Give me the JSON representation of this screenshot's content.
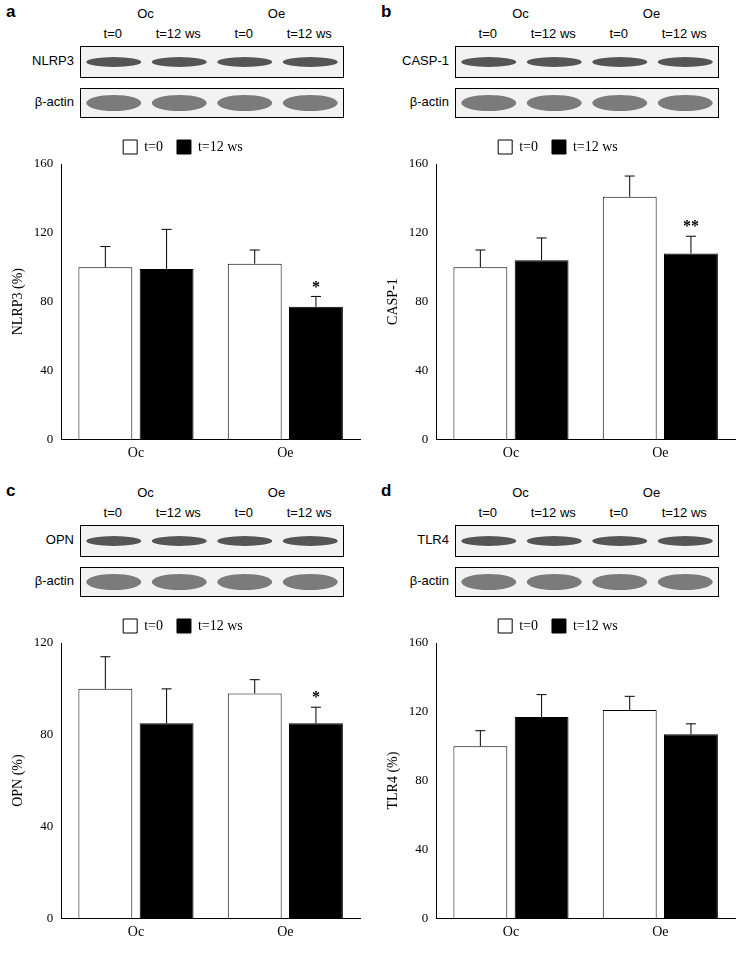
{
  "chart_data": [
    {
      "type": "bar",
      "title": "a",
      "blot": {
        "groups": [
          "Oc",
          "Oe"
        ],
        "lanes": [
          "t=0",
          "t=12 ws",
          "t=0",
          "t=12 ws"
        ],
        "rows": [
          "NLRP3",
          "β-actin"
        ]
      },
      "categories": [
        "Oc",
        "Oe"
      ],
      "series": [
        {
          "name": "t=0",
          "color": "#ffffff",
          "values": [
            100,
            102
          ],
          "errors": [
            12,
            8
          ]
        },
        {
          "name": "t=12 ws",
          "color": "#000000",
          "values": [
            99,
            77
          ],
          "errors": [
            23,
            6
          ]
        }
      ],
      "y_label": "NLRP3 (%)",
      "ylim": [
        0,
        160
      ],
      "yticks": [
        0,
        40,
        80,
        120,
        160
      ],
      "grid": false,
      "legend": "top",
      "annotations": [
        {
          "text": "*",
          "category": "Oe",
          "series": "t=12 ws"
        }
      ]
    },
    {
      "type": "bar",
      "title": "b",
      "blot": {
        "groups": [
          "Oc",
          "Oe"
        ],
        "lanes": [
          "t=0",
          "t=12 ws",
          "t=0",
          "t=12 ws"
        ],
        "rows": [
          "CASP-1",
          "β-actin"
        ]
      },
      "categories": [
        "Oc",
        "Oe"
      ],
      "series": [
        {
          "name": "t=0",
          "color": "#ffffff",
          "values": [
            100,
            141
          ],
          "errors": [
            10,
            12
          ]
        },
        {
          "name": "t=12 ws",
          "color": "#000000",
          "values": [
            104,
            108
          ],
          "errors": [
            13,
            10
          ]
        }
      ],
      "y_label": "CASP-1",
      "ylim": [
        0,
        160
      ],
      "yticks": [
        0,
        40,
        80,
        120,
        160
      ],
      "grid": false,
      "legend": "top",
      "annotations": [
        {
          "text": "**",
          "category": "Oe",
          "series": "t=12 ws"
        }
      ]
    },
    {
      "type": "bar",
      "title": "c",
      "blot": {
        "groups": [
          "Oc",
          "Oe"
        ],
        "lanes": [
          "t=0",
          "t=12 ws",
          "t=0",
          "t=12 ws"
        ],
        "rows": [
          "OPN",
          "β-actin"
        ]
      },
      "categories": [
        "Oc",
        "Oe"
      ],
      "series": [
        {
          "name": "t=0",
          "color": "#ffffff",
          "values": [
            100,
            98
          ],
          "errors": [
            14,
            6
          ]
        },
        {
          "name": "t=12 ws",
          "color": "#000000",
          "values": [
            85,
            85
          ],
          "errors": [
            15,
            7
          ]
        }
      ],
      "y_label": "OPN (%)",
      "ylim": [
        0,
        120
      ],
      "yticks": [
        0,
        40,
        80,
        120
      ],
      "grid": false,
      "legend": "top",
      "annotations": [
        {
          "text": "*",
          "category": "Oe",
          "series": "t=12 ws"
        }
      ]
    },
    {
      "type": "bar",
      "title": "d",
      "blot": {
        "groups": [
          "Oc",
          "Oe"
        ],
        "lanes": [
          "t=0",
          "t=12 ws",
          "t=0",
          "t=12 ws"
        ],
        "rows": [
          "TLR4",
          "β-actin"
        ]
      },
      "categories": [
        "Oc",
        "Oe"
      ],
      "series": [
        {
          "name": "t=0",
          "color": "#ffffff",
          "values": [
            100,
            121
          ],
          "errors": [
            9,
            8
          ]
        },
        {
          "name": "t=12 ws",
          "color": "#000000",
          "values": [
            117,
            107
          ],
          "errors": [
            13,
            6
          ]
        }
      ],
      "y_label": "TLR4 (%)",
      "ylim": [
        0,
        160
      ],
      "yticks": [
        0,
        40,
        80,
        120,
        160
      ],
      "grid": false,
      "legend": "top",
      "annotations": []
    }
  ]
}
